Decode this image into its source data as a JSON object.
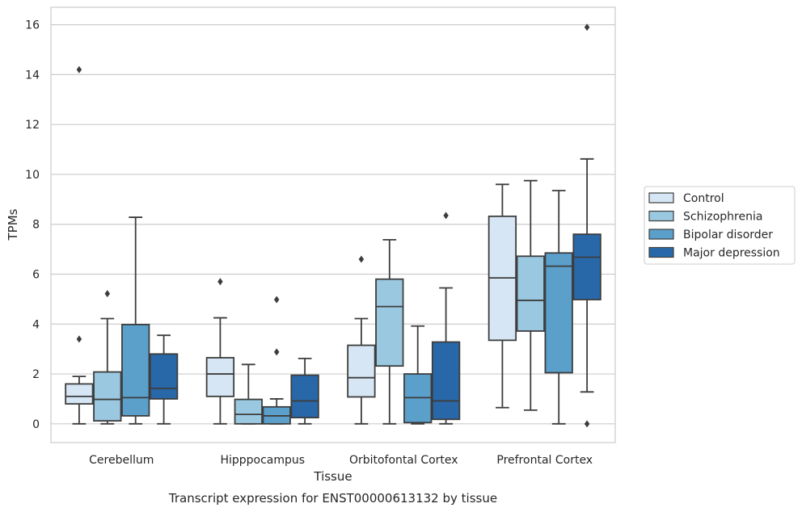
{
  "chart_data": {
    "type": "boxplot",
    "caption": "Transcript expression for ENST00000613132 by tissue",
    "xlabel": "Tissue",
    "ylabel": "TPMs",
    "ylim": [
      -0.75,
      16.7
    ],
    "yticks": [
      0,
      2,
      4,
      6,
      8,
      10,
      12,
      14,
      16
    ],
    "grid": "horizontal",
    "legend_position": "right",
    "categories": [
      "Cerebellum",
      "Hipppocampus",
      "Orbitofontal Cortex",
      "Prefrontal Cortex"
    ],
    "series": [
      {
        "name": "Control",
        "color": "#d6e6f4",
        "boxes": [
          {
            "whislo": 0.0,
            "q1": 0.8,
            "med": 1.1,
            "q3": 1.6,
            "whishi": 1.9,
            "fliers": [
              3.4,
              14.2
            ]
          },
          {
            "whislo": 0.0,
            "q1": 1.1,
            "med": 2.0,
            "q3": 2.65,
            "whishi": 4.25,
            "fliers": [
              5.7
            ]
          },
          {
            "whislo": 0.0,
            "q1": 1.08,
            "med": 1.85,
            "q3": 3.15,
            "whishi": 4.22,
            "fliers": [
              6.6
            ]
          },
          {
            "whislo": 0.65,
            "q1": 3.35,
            "med": 5.85,
            "q3": 8.32,
            "whishi": 9.6,
            "fliers": []
          }
        ]
      },
      {
        "name": "Schizophrenia",
        "color": "#9ac8e0",
        "boxes": [
          {
            "whislo": 0.0,
            "q1": 0.12,
            "med": 0.98,
            "q3": 2.08,
            "whishi": 4.22,
            "fliers": [
              5.22
            ]
          },
          {
            "whislo": 0.0,
            "q1": 0.0,
            "med": 0.38,
            "q3": 0.98,
            "whishi": 2.38,
            "fliers": []
          },
          {
            "whislo": 0.0,
            "q1": 2.32,
            "med": 4.7,
            "q3": 5.8,
            "whishi": 7.38,
            "fliers": []
          },
          {
            "whislo": 0.55,
            "q1": 3.72,
            "med": 4.95,
            "q3": 6.72,
            "whishi": 9.75,
            "fliers": []
          }
        ]
      },
      {
        "name": "Bipolar disorder",
        "color": "#5b9fcb",
        "boxes": [
          {
            "whislo": 0.0,
            "q1": 0.32,
            "med": 1.05,
            "q3": 3.98,
            "whishi": 8.28,
            "fliers": []
          },
          {
            "whislo": 0.0,
            "q1": 0.0,
            "med": 0.32,
            "q3": 0.68,
            "whishi": 1.0,
            "fliers": [
              2.88,
              4.98
            ]
          },
          {
            "whislo": 0.0,
            "q1": 0.05,
            "med": 1.05,
            "q3": 2.0,
            "whishi": 3.92,
            "fliers": []
          },
          {
            "whislo": 0.0,
            "q1": 2.05,
            "med": 6.32,
            "q3": 6.85,
            "whishi": 9.35,
            "fliers": []
          }
        ]
      },
      {
        "name": "Major depression",
        "color": "#2868a9",
        "boxes": [
          {
            "whislo": 0.0,
            "q1": 1.0,
            "med": 1.42,
            "q3": 2.8,
            "whishi": 3.55,
            "fliers": []
          },
          {
            "whislo": 0.0,
            "q1": 0.25,
            "med": 0.92,
            "q3": 1.95,
            "whishi": 2.62,
            "fliers": []
          },
          {
            "whislo": 0.0,
            "q1": 0.18,
            "med": 0.92,
            "q3": 3.28,
            "whishi": 5.45,
            "fliers": [
              8.35
            ]
          },
          {
            "whislo": 1.28,
            "q1": 4.98,
            "med": 6.68,
            "q3": 7.6,
            "whishi": 10.62,
            "fliers": [
              0.0,
              15.9
            ]
          }
        ]
      }
    ]
  }
}
